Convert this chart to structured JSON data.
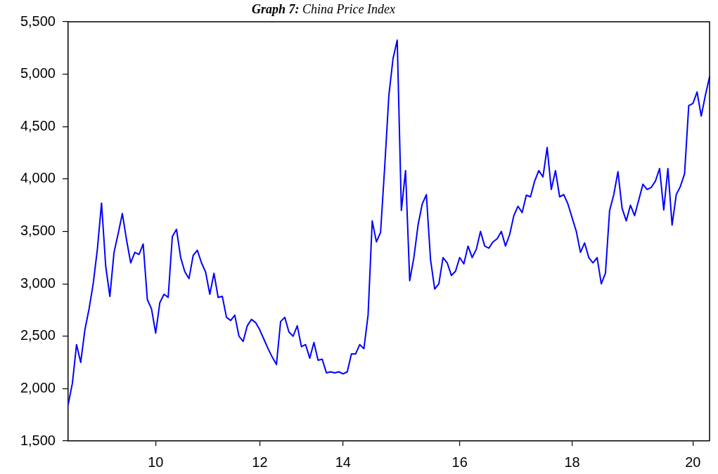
{
  "chart_data": {
    "type": "line",
    "title": "Graph 7: China Price Index",
    "categories": [
      null,
      null,
      null,
      null,
      null,
      null,
      null,
      null,
      null,
      null,
      null,
      null,
      null,
      null,
      null,
      null,
      null,
      null,
      null,
      null,
      null,
      "10",
      null,
      null,
      null,
      null,
      null,
      null,
      null,
      null,
      null,
      null,
      null,
      null,
      null,
      null,
      null,
      null,
      null,
      null,
      null,
      null,
      null,
      null,
      null,
      null,
      "12",
      null,
      null,
      null,
      null,
      null,
      null,
      null,
      null,
      null,
      null,
      null,
      null,
      null,
      null,
      null,
      null,
      null,
      null,
      null,
      "14",
      null,
      null,
      null,
      null,
      null,
      null,
      null,
      null,
      null,
      null,
      null,
      null,
      null,
      null,
      null,
      null,
      null,
      null,
      null,
      null,
      null,
      null,
      null,
      null,
      null,
      null,
      null,
      "16",
      null,
      null,
      null,
      null,
      null,
      null,
      null,
      null,
      null,
      null,
      null,
      null,
      null,
      null,
      null,
      null,
      null,
      null,
      null,
      null,
      null,
      null,
      null,
      null,
      null,
      null,
      "18",
      null,
      null,
      null,
      null,
      null,
      null,
      null,
      null,
      null,
      null,
      null,
      null,
      null,
      null,
      null,
      null,
      null,
      null,
      null,
      null,
      null,
      null,
      null,
      null,
      null,
      null,
      null,
      null,
      "20",
      null,
      null,
      null,
      null
    ],
    "values": [
      1850,
      2050,
      2420,
      2250,
      2560,
      2760,
      3000,
      3330,
      3770,
      3170,
      2880,
      3300,
      3480,
      3670,
      3420,
      3200,
      3300,
      3280,
      3380,
      2850,
      2760,
      2530,
      2820,
      2900,
      2870,
      3450,
      3520,
      3250,
      3115,
      3050,
      3270,
      3320,
      3200,
      3110,
      2900,
      3100,
      2870,
      2880,
      2680,
      2650,
      2700,
      2500,
      2450,
      2600,
      2660,
      2630,
      2560,
      2470,
      2380,
      2300,
      2230,
      2640,
      2680,
      2540,
      2500,
      2600,
      2400,
      2420,
      2290,
      2440,
      2270,
      2280,
      2150,
      2160,
      2150,
      2160,
      2140,
      2160,
      2330,
      2330,
      2420,
      2380,
      2700,
      3600,
      3400,
      3490,
      4120,
      4800,
      5150,
      5325,
      3700,
      4080,
      3030,
      3250,
      3560,
      3760,
      3850,
      3230,
      2950,
      3000,
      3250,
      3200,
      3080,
      3120,
      3250,
      3190,
      3360,
      3250,
      3330,
      3500,
      3360,
      3340,
      3400,
      3430,
      3500,
      3360,
      3470,
      3650,
      3740,
      3680,
      3845,
      3830,
      3980,
      4080,
      4020,
      4300,
      3900,
      4080,
      3830,
      3850,
      3760,
      3630,
      3500,
      3300,
      3390,
      3250,
      3200,
      3250,
      3000,
      3100,
      3700,
      3850,
      4070,
      3720,
      3600,
      3750,
      3650,
      3800,
      3950,
      3900,
      3920,
      3980,
      4100,
      3705,
      4100,
      3560,
      3850,
      3930,
      4050,
      4700,
      4720,
      4830,
      4600,
      4800,
      4975
    ],
    "color": "#0000ff",
    "ylim": [
      1500,
      5500
    ],
    "yticks": [
      {
        "value": 1500,
        "label": "1,500"
      },
      {
        "value": 2000,
        "label": "2,000"
      },
      {
        "value": 2500,
        "label": "2,500"
      },
      {
        "value": 3000,
        "label": "3,000"
      },
      {
        "value": 3500,
        "label": "3,500"
      },
      {
        "value": 4000,
        "label": "4,000"
      },
      {
        "value": 4500,
        "label": "4,500"
      },
      {
        "value": 5000,
        "label": "5,000"
      },
      {
        "value": 5500,
        "label": "5,500"
      }
    ],
    "grid": false,
    "legend": false
  }
}
